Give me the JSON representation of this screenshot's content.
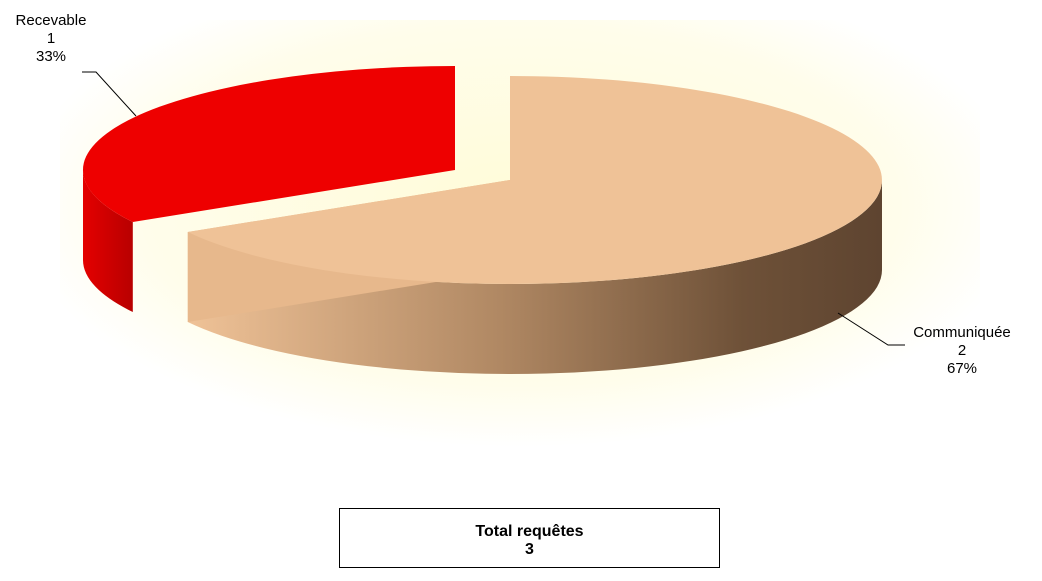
{
  "chart_data": {
    "type": "pie",
    "style": "3d-exploded",
    "slices": [
      {
        "name": "Communiquée",
        "value": 2,
        "percent": "67%",
        "color": "#EFC297",
        "side_color": "#6E5138"
      },
      {
        "name": "Recevable",
        "value": 1,
        "percent": "33%",
        "color": "#EE0000",
        "side_color": "#9A0000"
      }
    ],
    "background_color": "#FFFDE0"
  },
  "summary": {
    "title": "Total requêtes",
    "total": "3"
  }
}
